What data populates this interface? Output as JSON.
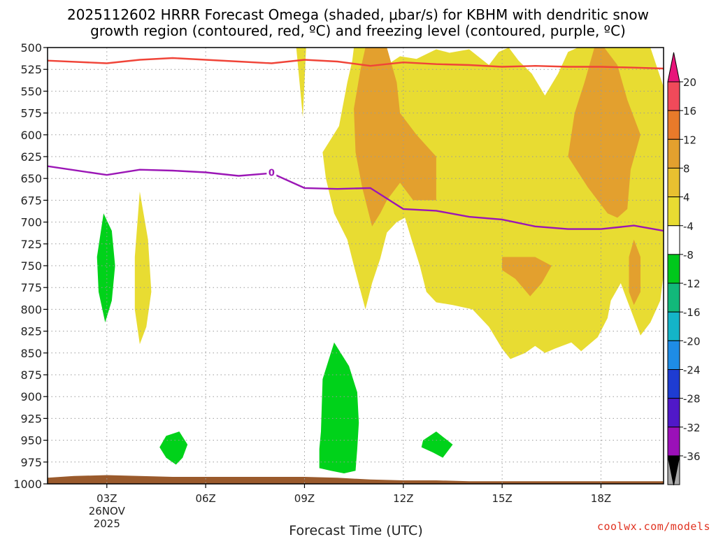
{
  "title": {
    "line1": "2025112602 HRRR Forecast Omega (shaded, μbar/s) for KBHM with dendritic snow",
    "line2": "growth region (contoured, red, ºC) and freezing level (contoured, purple, ºC)"
  },
  "credit": "coolwx.com/models",
  "colors": {
    "yellow": "#e8dc32",
    "orange": "#e3a02e",
    "green": "#00d21a",
    "red_line": "#f04438",
    "purple_line": "#9b16b6",
    "terrain": "#9a5a2c",
    "grid": "#9a9a9a"
  },
  "chart_data": {
    "type": "area",
    "title": "2025112602 HRRR Forecast Omega (shaded, μbar/s) for KBHM with dendritic snow growth region (contoured, red, ºC) and freezing level (contoured, purple, ºC)",
    "xlabel": "Forecast Time (UTC)",
    "ylabel": "",
    "x_range_hours": [
      2,
      20
    ],
    "xlim": [
      1.2,
      19.9
    ],
    "ylim_hPa": [
      1000,
      500
    ],
    "y_ticks": [
      500,
      525,
      550,
      575,
      600,
      625,
      650,
      675,
      700,
      725,
      750,
      775,
      800,
      825,
      850,
      875,
      900,
      925,
      950,
      975,
      1000
    ],
    "x_ticks": [
      {
        "hour": 3,
        "label": "03Z",
        "sub1": "26NOV",
        "sub2": "2025"
      },
      {
        "hour": 6,
        "label": "06Z"
      },
      {
        "hour": 9,
        "label": "09Z"
      },
      {
        "hour": 12,
        "label": "12Z"
      },
      {
        "hour": 15,
        "label": "15Z"
      },
      {
        "hour": 18,
        "label": "18Z"
      }
    ],
    "grid": true,
    "colorbar": {
      "labels": [
        "20",
        "16",
        "12",
        "8",
        "4",
        "-4",
        "-8",
        "-12",
        "-16",
        "-20",
        "-24",
        "-28",
        "-32",
        "-36"
      ],
      "colors": [
        "#f04a5a",
        "#e87a2a",
        "#e3a02e",
        "#e8c030",
        "#e8dc32",
        "#ffffff",
        "#00c81c",
        "#12b87a",
        "#14b4c8",
        "#1e8ce6",
        "#1e3cd2",
        "#5018c8",
        "#9b10b8",
        "#aaaaaa"
      ],
      "end_top": "#e8147a",
      "end_bottom": "#000000"
    },
    "series": [
      {
        "name": "dendritic snow growth region (red)",
        "color": "#f04438",
        "x": [
          1.2,
          3,
          4,
          5,
          6,
          7,
          8,
          9,
          10,
          11,
          12,
          13,
          14,
          15,
          16,
          17,
          18,
          19,
          19.9
        ],
        "y": [
          515,
          518,
          514,
          512,
          514,
          516,
          518,
          514,
          516,
          521,
          517,
          519,
          520,
          522,
          521,
          522,
          522,
          523,
          524
        ]
      },
      {
        "name": "freezing level (purple)",
        "color": "#9b16b6",
        "x": [
          1.2,
          3,
          4,
          5,
          6,
          7,
          8,
          9,
          10,
          11,
          12,
          13,
          14,
          15,
          16,
          17,
          18,
          19,
          19.9
        ],
        "y": [
          636,
          646,
          640,
          641,
          643,
          647,
          644,
          661,
          662,
          661,
          685,
          687,
          694,
          697,
          705,
          708,
          708,
          704,
          710
        ],
        "contour_label": {
          "text": "0",
          "x": 8,
          "y": 643
        }
      }
    ],
    "omega_regions": [
      {
        "fill": "yellow",
        "points": [
          [
            8.75,
            500
          ],
          [
            9.05,
            500
          ],
          [
            8.95,
            580
          ],
          [
            8.85,
            540
          ]
        ]
      },
      {
        "fill": "yellow",
        "points": [
          [
            10.5,
            500
          ],
          [
            11.3,
            500
          ],
          [
            11.5,
            520
          ],
          [
            11.9,
            510
          ],
          [
            12.4,
            513
          ],
          [
            13.0,
            502
          ],
          [
            13.4,
            506
          ],
          [
            14.0,
            502
          ],
          [
            14.6,
            520
          ],
          [
            14.9,
            505
          ],
          [
            15.2,
            500
          ],
          [
            15.5,
            515
          ],
          [
            15.9,
            530
          ],
          [
            16.3,
            555
          ],
          [
            16.7,
            530
          ],
          [
            17.0,
            505
          ],
          [
            17.3,
            500
          ],
          [
            19.5,
            500
          ],
          [
            19.9,
            545
          ],
          [
            19.9,
            760
          ],
          [
            19.8,
            790
          ],
          [
            19.5,
            815
          ],
          [
            19.2,
            830
          ],
          [
            18.85,
            795
          ],
          [
            18.6,
            770
          ],
          [
            18.3,
            790
          ],
          [
            18.2,
            810
          ],
          [
            17.9,
            832
          ],
          [
            17.4,
            848
          ],
          [
            17.1,
            838
          ],
          [
            16.6,
            845
          ],
          [
            16.3,
            850
          ],
          [
            16.0,
            842
          ],
          [
            15.7,
            850
          ],
          [
            15.25,
            857
          ],
          [
            15.0,
            845
          ],
          [
            14.6,
            820
          ],
          [
            14.1,
            800
          ],
          [
            13.5,
            795
          ],
          [
            13.0,
            792
          ],
          [
            12.7,
            780
          ],
          [
            12.5,
            750
          ],
          [
            12.25,
            720
          ],
          [
            12.05,
            695
          ],
          [
            11.8,
            700
          ],
          [
            11.5,
            712
          ],
          [
            11.3,
            742
          ],
          [
            11.05,
            770
          ],
          [
            10.85,
            800
          ],
          [
            10.5,
            750
          ],
          [
            10.3,
            720
          ],
          [
            9.9,
            690
          ],
          [
            9.65,
            650
          ],
          [
            9.55,
            620
          ],
          [
            9.8,
            605
          ],
          [
            10.05,
            590
          ],
          [
            10.3,
            540
          ],
          [
            10.45,
            515
          ]
        ]
      },
      {
        "fill": "yellow",
        "points": [
          [
            4.0,
            665
          ],
          [
            4.25,
            720
          ],
          [
            4.35,
            780
          ],
          [
            4.2,
            820
          ],
          [
            4.0,
            840
          ],
          [
            3.85,
            800
          ],
          [
            3.85,
            740
          ]
        ]
      },
      {
        "fill": "orange",
        "points": [
          [
            10.85,
            500
          ],
          [
            11.5,
            500
          ],
          [
            11.8,
            540
          ],
          [
            11.9,
            575
          ],
          [
            12.4,
            600
          ],
          [
            13.0,
            625
          ],
          [
            13.0,
            675
          ],
          [
            12.3,
            675
          ],
          [
            11.9,
            655
          ],
          [
            11.5,
            675
          ],
          [
            11.3,
            690
          ],
          [
            11.05,
            705
          ],
          [
            10.75,
            660
          ],
          [
            10.55,
            620
          ],
          [
            10.5,
            570
          ],
          [
            10.7,
            525
          ]
        ]
      },
      {
        "fill": "orange",
        "points": [
          [
            17.8,
            500
          ],
          [
            18.1,
            500
          ],
          [
            18.5,
            520
          ],
          [
            18.8,
            560
          ],
          [
            19.2,
            600
          ],
          [
            18.9,
            640
          ],
          [
            18.8,
            685
          ],
          [
            18.5,
            695
          ],
          [
            18.2,
            690
          ],
          [
            17.6,
            660
          ],
          [
            17.0,
            625
          ],
          [
            17.2,
            575
          ],
          [
            17.5,
            540
          ]
        ]
      },
      {
        "fill": "orange",
        "points": [
          [
            15.0,
            740
          ],
          [
            16.0,
            740
          ],
          [
            16.5,
            750
          ],
          [
            16.2,
            770
          ],
          [
            15.85,
            785
          ],
          [
            15.4,
            765
          ],
          [
            15.0,
            755
          ]
        ]
      },
      {
        "fill": "orange",
        "points": [
          [
            19.0,
            720
          ],
          [
            19.2,
            740
          ],
          [
            19.2,
            780
          ],
          [
            19.0,
            795
          ],
          [
            18.85,
            780
          ],
          [
            18.85,
            740
          ]
        ]
      },
      {
        "fill": "green",
        "points": [
          [
            2.9,
            690
          ],
          [
            3.15,
            710
          ],
          [
            3.25,
            750
          ],
          [
            3.15,
            790
          ],
          [
            2.95,
            815
          ],
          [
            2.75,
            780
          ],
          [
            2.7,
            740
          ]
        ]
      },
      {
        "fill": "green",
        "points": [
          [
            9.9,
            838
          ],
          [
            10.35,
            865
          ],
          [
            10.6,
            895
          ],
          [
            10.65,
            930
          ],
          [
            10.6,
            960
          ],
          [
            10.55,
            985
          ],
          [
            10.2,
            988
          ],
          [
            9.8,
            985
          ],
          [
            9.45,
            982
          ],
          [
            9.45,
            960
          ],
          [
            9.5,
            940
          ],
          [
            9.55,
            880
          ]
        ]
      },
      {
        "fill": "green",
        "points": [
          [
            4.8,
            945
          ],
          [
            5.2,
            940
          ],
          [
            5.45,
            955
          ],
          [
            5.3,
            970
          ],
          [
            5.1,
            978
          ],
          [
            4.8,
            970
          ],
          [
            4.6,
            958
          ]
        ]
      },
      {
        "fill": "green",
        "points": [
          [
            12.6,
            950
          ],
          [
            13.0,
            940
          ],
          [
            13.5,
            955
          ],
          [
            13.2,
            970
          ],
          [
            12.9,
            964
          ],
          [
            12.55,
            958
          ]
        ]
      }
    ],
    "terrain_surface": {
      "x": [
        1.2,
        2,
        3,
        4,
        5,
        6,
        7,
        8,
        9,
        10,
        11,
        12,
        13,
        14,
        15,
        16,
        17,
        18,
        19,
        19.9
      ],
      "y": [
        993,
        991,
        990,
        991,
        992,
        992,
        992,
        992,
        992,
        993,
        995,
        996,
        996,
        997,
        997,
        997,
        997,
        997,
        997,
        997
      ]
    }
  }
}
